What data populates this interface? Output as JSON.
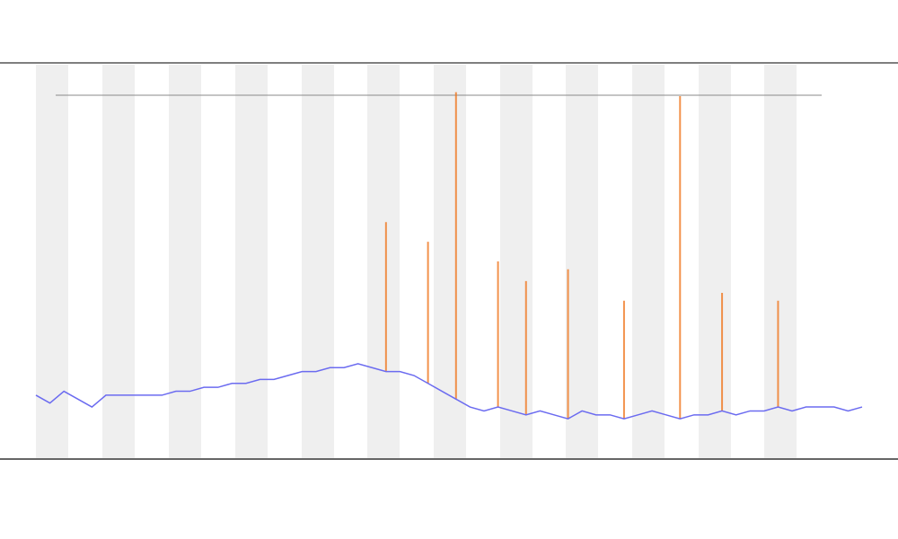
{
  "chart_data": {
    "type": "line",
    "x": [
      0,
      1,
      2,
      3,
      4,
      5,
      6,
      7,
      8,
      9,
      10,
      11,
      12,
      13,
      14,
      15,
      16,
      17,
      18,
      19,
      20,
      21,
      22,
      23,
      24,
      25,
      26,
      27,
      28,
      29,
      30,
      31,
      32,
      33,
      34,
      35,
      36,
      37,
      38,
      39,
      40,
      41,
      42,
      43,
      44,
      45,
      46,
      47,
      48,
      49,
      50,
      51,
      52,
      53,
      54,
      55,
      56,
      57,
      58,
      59
    ],
    "xlim": [
      0,
      59
    ],
    "ylim": [
      0,
      100
    ],
    "series": [
      {
        "color": "#6b6bf0",
        "values": [
          16,
          14,
          17,
          15,
          13,
          16,
          16,
          16,
          16,
          16,
          17,
          17,
          18,
          18,
          19,
          19,
          20,
          20,
          21,
          22,
          22,
          23,
          23,
          24,
          23,
          22,
          22,
          21,
          19,
          17,
          15,
          13,
          12,
          13,
          12,
          11,
          12,
          11,
          10,
          12,
          11,
          11,
          10,
          11,
          12,
          11,
          10,
          11,
          11,
          12,
          11,
          12,
          12,
          13,
          12,
          13,
          13,
          13,
          12,
          13
        ]
      },
      {
        "color": "#f07820",
        "values": [
          null,
          null,
          null,
          null,
          null,
          null,
          null,
          null,
          null,
          null,
          null,
          null,
          null,
          null,
          null,
          null,
          null,
          null,
          null,
          null,
          null,
          null,
          null,
          null,
          null,
          60,
          null,
          null,
          55,
          null,
          93,
          null,
          null,
          50,
          null,
          45,
          null,
          null,
          48,
          null,
          null,
          null,
          40,
          null,
          null,
          null,
          92,
          null,
          null,
          42,
          null,
          null,
          null,
          40,
          null,
          null,
          null,
          null,
          null,
          null
        ]
      }
    ]
  }
}
